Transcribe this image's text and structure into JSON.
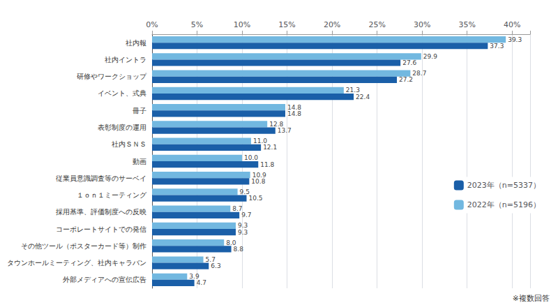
{
  "chart_data": {
    "type": "bar",
    "orientation": "horizontal",
    "categories": [
      "社内報",
      "社内イントラ",
      "研修やワークショップ",
      "イベント、式典",
      "冊子",
      "表彰制度の運用",
      "社内ＳＮＳ",
      "動画",
      "従業員意識調査等のサーベイ",
      "１ｏｎ１ミーティング",
      "採用基準、評価制度への反映",
      "コーポレートサイトでの発信",
      "その他ツール（ポスターカード等）制作",
      "タウンホールミーティング、社内キャラバン",
      "外部メディアへの宣伝広告"
    ],
    "series": [
      {
        "name": "2023年（n=5337）",
        "color": "#1a5fa8",
        "values": [
          37.3,
          27.6,
          27.2,
          22.4,
          14.8,
          13.7,
          12.1,
          11.8,
          10.8,
          10.5,
          9.7,
          9.3,
          8.8,
          6.3,
          4.7
        ],
        "value_labels": [
          "37.3",
          "27.6",
          "27.2",
          "22.4",
          "14.8",
          "13.7",
          "12.1",
          "11.8",
          "10.8",
          "10.5",
          "9.7",
          "9.3",
          "8.8",
          "6.3",
          "4.7"
        ]
      },
      {
        "name": "2022年（n=5196）",
        "color": "#72b8e0",
        "values": [
          39.3,
          29.9,
          28.7,
          21.3,
          14.8,
          12.8,
          11.0,
          10.0,
          10.9,
          9.5,
          8.7,
          9.3,
          8.0,
          5.7,
          3.9
        ],
        "value_labels": [
          "39.3",
          "29.9",
          "28.7",
          "21.3",
          "14.8",
          "12.8",
          "11.0",
          "10.0",
          "10.9",
          "9.5",
          "8.7",
          "9.3",
          "8.0",
          "5.7",
          "3.9"
        ]
      }
    ],
    "xlim": [
      0,
      42
    ],
    "xticks": [
      {
        "value": 0,
        "label": "0%"
      },
      {
        "value": 5,
        "label": "5%"
      },
      {
        "value": 10,
        "label": "10%"
      },
      {
        "value": 15,
        "label": "15%"
      },
      {
        "value": 20,
        "label": "20%"
      },
      {
        "value": 25,
        "label": "25%"
      },
      {
        "value": 30,
        "label": "30%"
      },
      {
        "value": 35,
        "label": "35%"
      },
      {
        "value": 40,
        "label": "40%"
      }
    ],
    "grid": true,
    "legend": "right",
    "data_labels": true,
    "annotations": [
      "※複数回答"
    ]
  }
}
